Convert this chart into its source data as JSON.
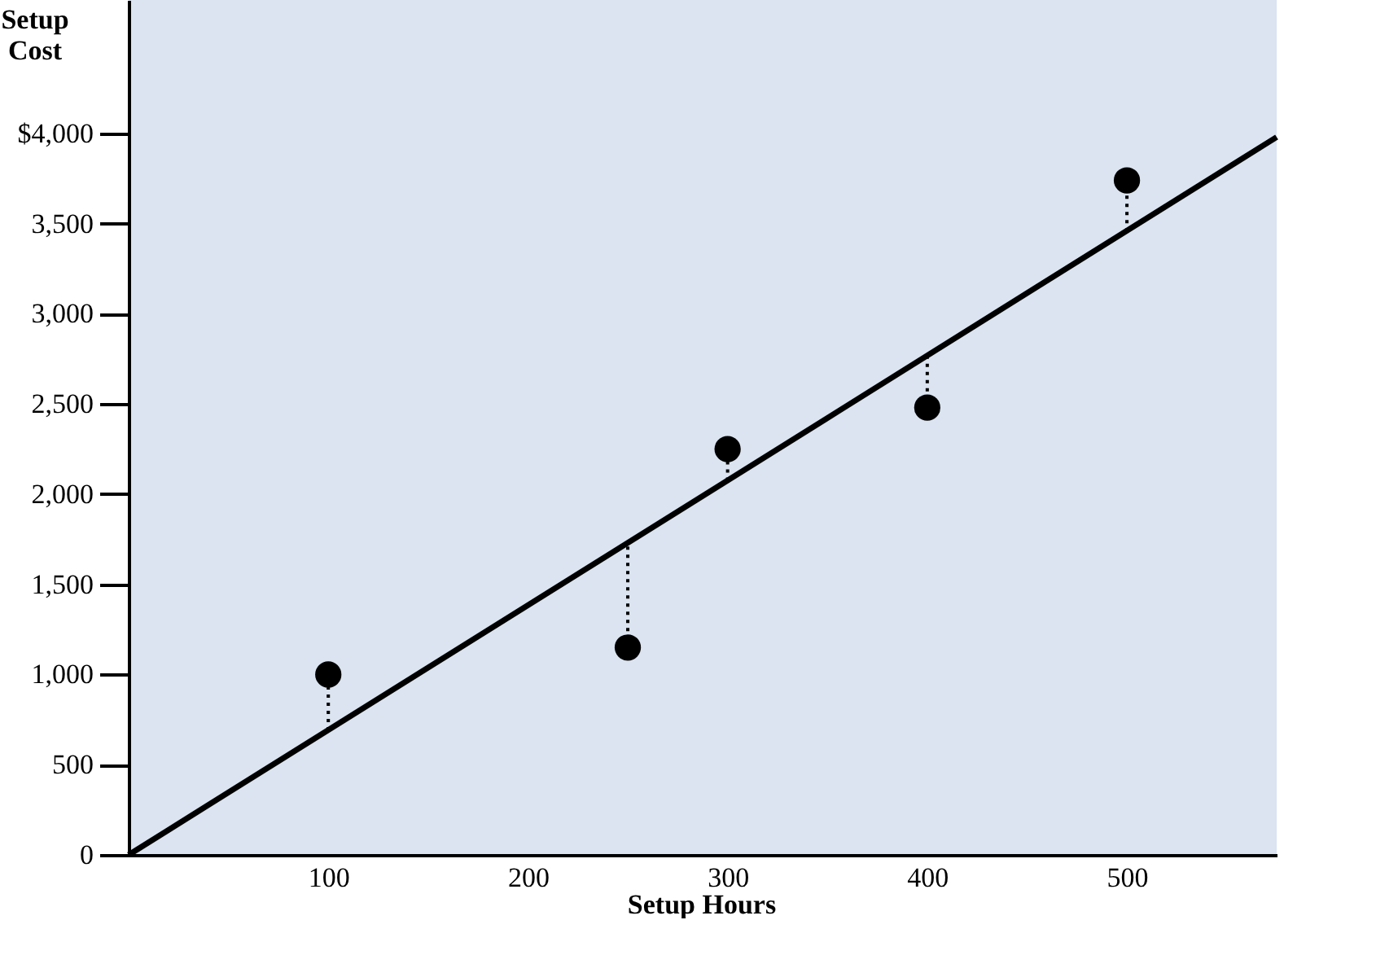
{
  "chart_data": {
    "type": "scatter",
    "xlabel": "Setup Hours",
    "ylabel": "Setup\nCost",
    "xlim": [
      0,
      575
    ],
    "ylim": [
      0,
      4740
    ],
    "xticks": [
      100,
      200,
      300,
      400,
      500
    ],
    "yticks": [
      {
        "value": 0,
        "label": "0"
      },
      500,
      {
        "value": 1000,
        "label": "1,000"
      },
      {
        "value": 1500,
        "label": "1,500"
      },
      {
        "value": 2000,
        "label": "2,000"
      },
      {
        "value": 2500,
        "label": "2,500"
      },
      {
        "value": 3000,
        "label": "3,000"
      },
      {
        "value": 3500,
        "label": "3,500"
      },
      {
        "value": 4000,
        "label": "$4,000"
      }
    ],
    "series": [
      {
        "type": "line",
        "color": "#000000",
        "x": [
          0,
          575
        ],
        "values": [
          0,
          3980
        ]
      },
      {
        "type": "scatter",
        "color": "#000000",
        "marker": "circle",
        "x": [
          100,
          250,
          300,
          400,
          500
        ],
        "values": [
          1000,
          1150,
          2250,
          2480,
          3740
        ],
        "errors": [
          [
            691,
            1000
          ],
          [
            1150,
            1728
          ],
          [
            2074,
            2250
          ],
          [
            2480,
            2765
          ],
          [
            3457,
            3740
          ]
        ]
      }
    ]
  }
}
